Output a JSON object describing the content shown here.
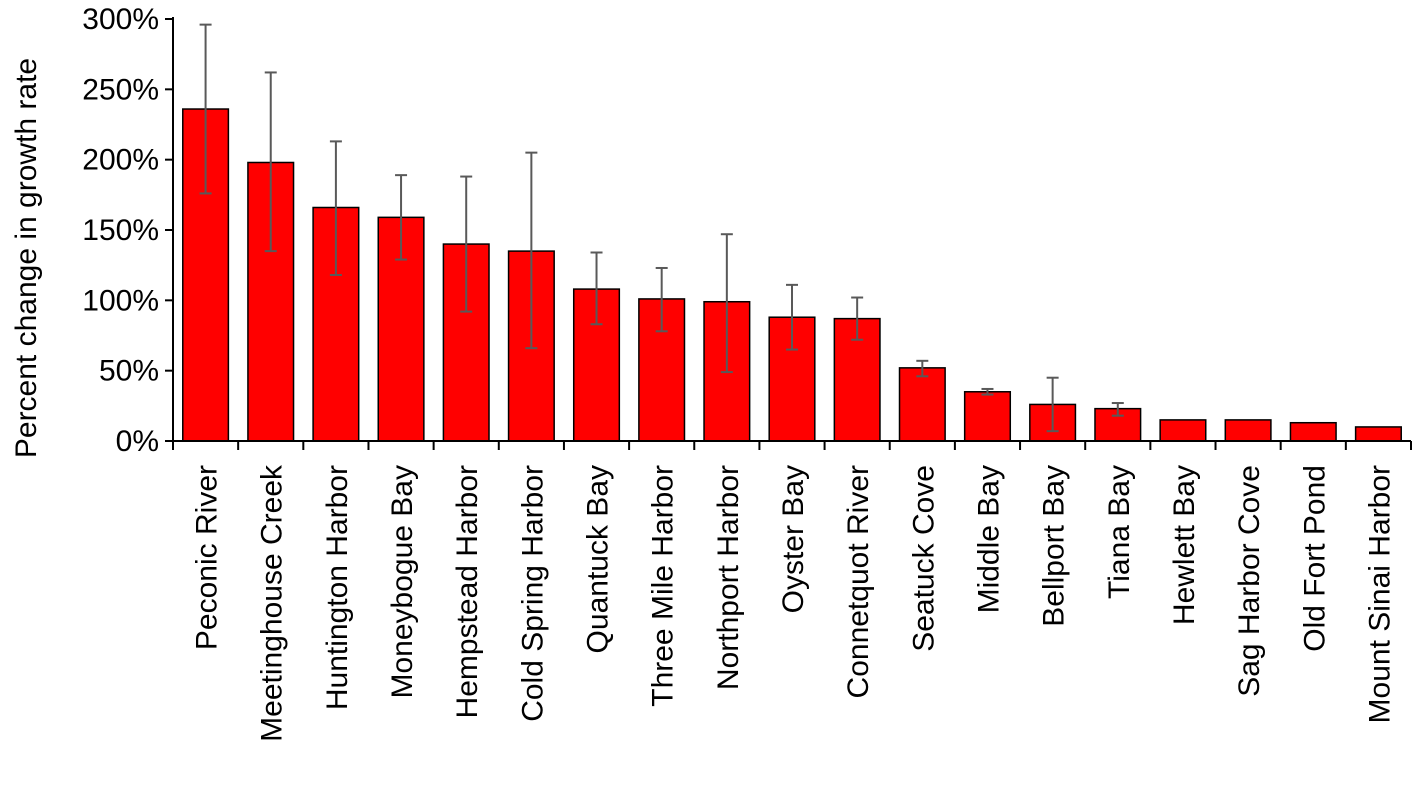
{
  "chart_data": {
    "type": "bar",
    "title": "",
    "xlabel": "",
    "ylabel": "Percent change in growth rate",
    "ylim": [
      0,
      300
    ],
    "yticks": [
      0,
      50,
      100,
      150,
      200,
      250,
      300
    ],
    "ytick_labels": [
      "0%",
      "50%",
      "100%",
      "150%",
      "200%",
      "250%",
      "300%"
    ],
    "grid": false,
    "legend": "none",
    "bar_color": "#ff0000",
    "bar_edge_color": "#000000",
    "error_bar_color": "#595959",
    "categories": [
      "Peconic River",
      "Meetinghouse Creek",
      "Huntington Harbor",
      "Moneybogue Bay",
      "Hempstead Harbor",
      "Cold Spring Harbor",
      "Quantuck Bay",
      "Three Mile Harbor",
      "Northport Harbor",
      "Oyster Bay",
      "Connetquot River",
      "Seatuck Cove",
      "Middle Bay",
      "Bellport Bay",
      "Tiana Bay",
      "Hewlett Bay",
      "Sag Harbor Cove",
      "Old Fort Pond",
      "Mount Sinai Harbor"
    ],
    "values": [
      236,
      198,
      166,
      159,
      140,
      135,
      108,
      101,
      99,
      88,
      87,
      52,
      35,
      26,
      23,
      15,
      15,
      13,
      10
    ],
    "error_lower": [
      176,
      135,
      118,
      129,
      92,
      66,
      83,
      78,
      49,
      65,
      72,
      46,
      33,
      7,
      18,
      null,
      null,
      null,
      null
    ],
    "error_upper": [
      296,
      262,
      213,
      189,
      188,
      205,
      134,
      123,
      147,
      111,
      102,
      57,
      37,
      45,
      27,
      null,
      null,
      null,
      null
    ]
  }
}
